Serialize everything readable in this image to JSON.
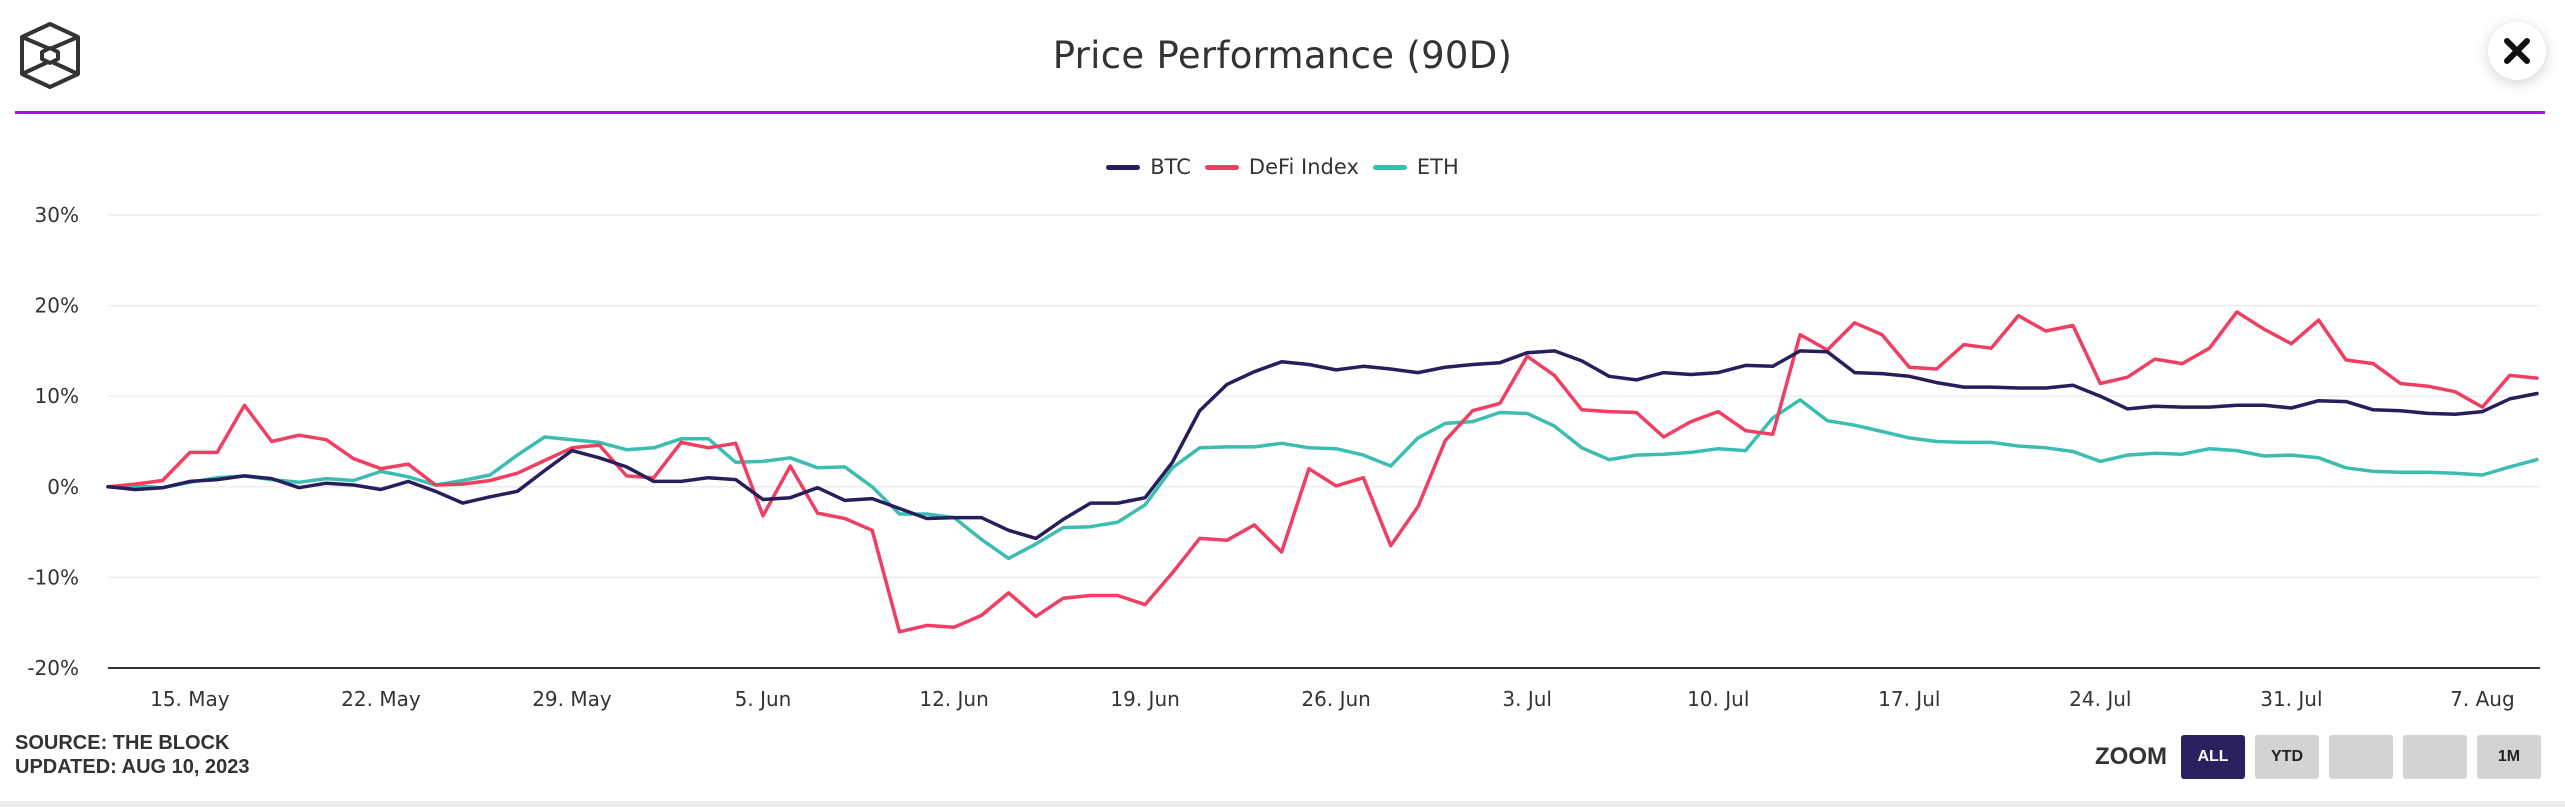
{
  "header": {
    "title": "Price Performance (90D)",
    "logo_icon": "cube-logo-icon",
    "close_icon": "close-icon"
  },
  "colors": {
    "accent_divider": "#a30df0",
    "btc": "#261f5c",
    "defi": "#ef3f62",
    "eth": "#3bbdb2",
    "zoom_active": "#2a2160",
    "zoom_inactive": "#d3d3d3"
  },
  "footer": {
    "source": "SOURCE: THE BLOCK",
    "updated": "UPDATED: AUG 10, 2023"
  },
  "zoom": {
    "label": "ZOOM",
    "buttons": [
      {
        "label": "ALL",
        "active": true
      },
      {
        "label": "YTD",
        "active": false
      },
      {
        "label": "",
        "active": false
      },
      {
        "label": "",
        "active": false
      },
      {
        "label": "1M",
        "active": false
      }
    ]
  },
  "chart_data": {
    "type": "line",
    "title": "Price Performance (90D)",
    "xlabel": "",
    "ylabel": "",
    "legend_position": "top-center",
    "grid": true,
    "ylim": [
      -20,
      30
    ],
    "yticks": [
      -20,
      -10,
      0,
      10,
      20,
      30
    ],
    "ytick_labels": [
      "-20%",
      "-10%",
      "0%",
      "10%",
      "20%",
      "30%"
    ],
    "x_start": "2023-05-12",
    "x_end": "2023-08-09",
    "xticks": [
      "2023-05-15",
      "2023-05-22",
      "2023-05-29",
      "2023-06-05",
      "2023-06-12",
      "2023-06-19",
      "2023-06-26",
      "2023-07-03",
      "2023-07-10",
      "2023-07-17",
      "2023-07-24",
      "2023-07-31",
      "2023-08-07"
    ],
    "xtick_labels": [
      "15. May",
      "22. May",
      "29. May",
      "5. Jun",
      "12. Jun",
      "19. Jun",
      "26. Jun",
      "3. Jul",
      "10. Jul",
      "17. Jul",
      "24. Jul",
      "31. Jul",
      "7. Aug"
    ],
    "series": [
      {
        "name": "BTC",
        "color": "#261f5c",
        "values": [
          0.0,
          -0.3,
          -0.1,
          0.6,
          0.8,
          1.2,
          0.9,
          -0.1,
          0.4,
          0.2,
          -0.3,
          0.6,
          -0.5,
          -1.8,
          -1.1,
          -0.5,
          1.8,
          4.0,
          3.2,
          2.2,
          0.6,
          0.6,
          1.0,
          0.8,
          -1.4,
          -1.2,
          -0.1,
          -1.5,
          -1.3,
          -2.4,
          -3.5,
          -3.4,
          -3.4,
          -4.8,
          -5.7,
          -3.6,
          -1.8,
          -1.8,
          -1.2,
          2.7,
          8.4,
          11.3,
          12.7,
          13.8,
          13.5,
          12.9,
          13.3,
          13.0,
          12.6,
          13.2,
          13.5,
          13.7,
          14.8,
          15.0,
          13.9,
          12.2,
          11.8,
          12.6,
          12.4,
          12.6,
          13.4,
          13.3,
          15.0,
          14.9,
          12.6,
          12.5,
          12.2,
          11.5,
          11.0,
          11.0,
          10.9,
          10.9,
          11.2,
          10.0,
          8.6,
          8.9,
          8.8,
          8.8,
          9.0,
          9.0,
          8.7,
          9.5,
          9.4,
          8.5,
          8.4,
          8.1,
          8.0,
          8.3,
          9.7,
          10.3
        ]
      },
      {
        "name": "DeFi Index",
        "color": "#ef3f62",
        "values": [
          0.0,
          0.3,
          0.7,
          3.8,
          3.8,
          9.0,
          5.0,
          5.7,
          5.2,
          3.1,
          2.0,
          2.5,
          0.2,
          0.3,
          0.7,
          1.5,
          2.9,
          4.3,
          4.6,
          1.2,
          1.0,
          4.9,
          4.3,
          4.8,
          -3.2,
          2.3,
          -2.9,
          -3.5,
          -4.8,
          -16.0,
          -15.3,
          -15.5,
          -14.2,
          -11.7,
          -14.3,
          -12.3,
          -12.0,
          -12.0,
          -13.0,
          -9.5,
          -5.7,
          -5.9,
          -4.2,
          -7.2,
          2.0,
          0.1,
          1.0,
          -6.5,
          -2.2,
          5.1,
          8.4,
          9.2,
          14.4,
          12.3,
          8.5,
          8.3,
          8.2,
          5.5,
          7.2,
          8.3,
          6.2,
          5.8,
          16.8,
          15.1,
          18.1,
          16.8,
          13.2,
          13.0,
          15.7,
          15.3,
          18.9,
          17.2,
          17.8,
          11.4,
          12.1,
          14.1,
          13.6,
          15.3,
          19.3,
          17.4,
          15.8,
          18.4,
          14.0,
          13.6,
          11.4,
          11.1,
          10.5,
          8.8,
          12.3,
          12.0
        ]
      },
      {
        "name": "ETH",
        "color": "#3bbdb2",
        "values": [
          0.0,
          0.1,
          -0.1,
          0.5,
          1.0,
          1.2,
          0.8,
          0.5,
          0.9,
          0.7,
          1.7,
          1.1,
          0.2,
          0.7,
          1.3,
          3.5,
          5.5,
          5.2,
          4.9,
          4.1,
          4.3,
          5.3,
          5.3,
          2.7,
          2.8,
          3.2,
          2.1,
          2.2,
          0.0,
          -3.0,
          -3.0,
          -3.4,
          -5.8,
          -7.9,
          -6.3,
          -4.5,
          -4.4,
          -3.9,
          -2.0,
          2.1,
          4.3,
          4.4,
          4.4,
          4.8,
          4.3,
          4.2,
          3.5,
          2.3,
          5.4,
          7.0,
          7.2,
          8.2,
          8.1,
          6.7,
          4.3,
          3.0,
          3.5,
          3.6,
          3.8,
          4.2,
          4.0,
          7.6,
          9.6,
          7.3,
          6.8,
          6.1,
          5.4,
          5.0,
          4.9,
          4.9,
          4.5,
          4.3,
          3.9,
          2.8,
          3.5,
          3.7,
          3.6,
          4.2,
          4.0,
          3.4,
          3.5,
          3.2,
          2.1,
          1.7,
          1.6,
          1.6,
          1.5,
          1.3,
          2.2,
          3.0
        ]
      }
    ]
  }
}
